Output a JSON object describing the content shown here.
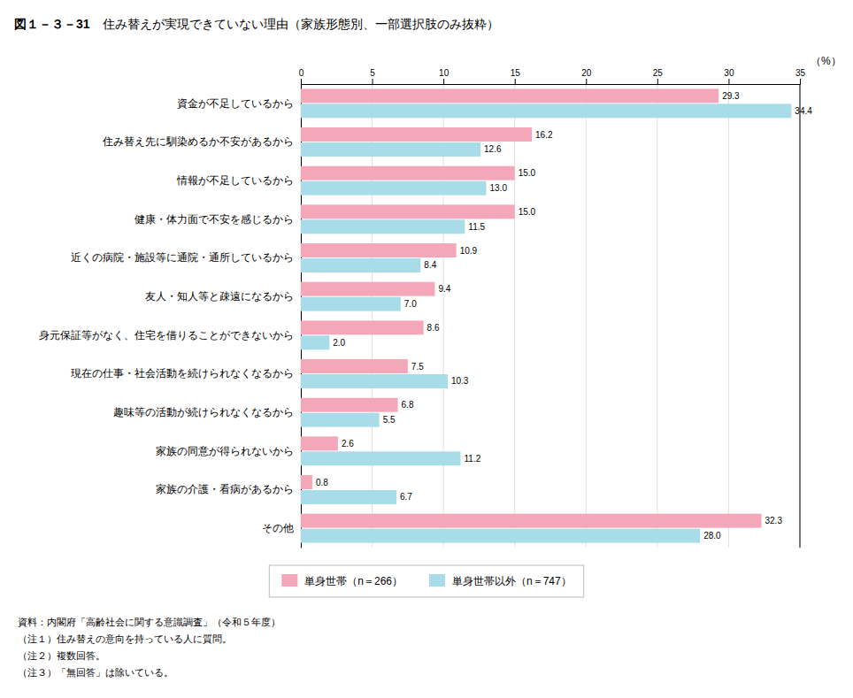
{
  "chart_data": {
    "type": "bar",
    "orientation": "horizontal",
    "figure_number": "図１－３－31",
    "title": "住み替えが実現できていない理由（家族形態別、一部選択肢のみ抜粋）",
    "xlabel": "（%）",
    "categories": [
      "資金が不足しているから",
      "住み替え先に馴染めるか不安があるから",
      "情報が不足しているから",
      "健康・体力面で不安を感じるから",
      "近くの病院・施設等に通院・通所しているから",
      "友人・知人等と疎遠になるから",
      "身元保証等がなく、住宅を借りることができないから",
      "現在の仕事・社会活動を続けられなくなるから",
      "趣味等の活動が続けられなくなるから",
      "家族の同意が得られないから",
      "家族の介護・看病があるから",
      "その他"
    ],
    "series": [
      {
        "name": "単身世帯（n＝266）",
        "color": "#F4A7B9",
        "values": [
          29.3,
          16.2,
          15.0,
          15.0,
          10.9,
          9.4,
          8.6,
          7.5,
          6.8,
          2.6,
          0.8,
          32.3
        ],
        "value_labels": [
          "29.3",
          "16.2",
          "15.0",
          "15.0",
          "10.9",
          "9.4",
          "8.6",
          "7.5",
          "6.8",
          "2.6",
          "0.8",
          "32.3"
        ]
      },
      {
        "name": "単身世帯以外（n＝747）",
        "color": "#A8DCE8",
        "values": [
          34.4,
          12.6,
          13.0,
          11.5,
          8.4,
          7.0,
          2.0,
          10.3,
          5.5,
          11.2,
          6.7,
          28.0
        ],
        "value_labels": [
          "34.4",
          "12.6",
          "13.0",
          "11.5",
          "8.4",
          "7.0",
          "2.0",
          "10.3",
          "5.5",
          "11.2",
          "6.7",
          "28.0"
        ]
      }
    ],
    "xlim": [
      0,
      35
    ],
    "xticks": [
      0,
      5,
      10,
      15,
      20,
      25,
      30,
      35
    ],
    "grid": true,
    "data_labels": true,
    "footnotes": [
      "資料：内閣府「高齢社会に関する意識調査」（令和５年度）",
      "（注１）住み替えの意向を持っている人に質問。",
      "（注２）複数回答。",
      "（注３）「無回答」は除いている。"
    ]
  }
}
